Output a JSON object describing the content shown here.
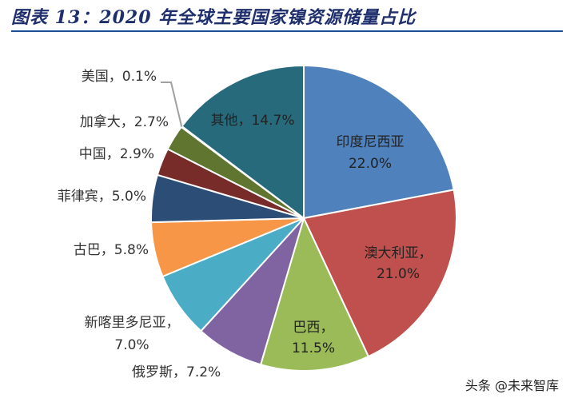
{
  "title": "图表 13：2020 年全球主要国家镍资源储量占比",
  "watermark": "头条 @未来智库",
  "chart_data": {
    "type": "pie",
    "title": "图表 13：2020 年全球主要国家镍资源储量占比",
    "unit": "%",
    "slices": [
      {
        "name": "印度尼西亚",
        "value": 22.0,
        "label_lines": [
          "印度尼西亚",
          "22.0%"
        ],
        "color": "#4f81bd",
        "label_inside": true
      },
      {
        "name": "澳大利亚",
        "value": 21.0,
        "label_lines": [
          "澳大利亚，",
          "21.0%"
        ],
        "color": "#c0504d",
        "label_inside": true
      },
      {
        "name": "巴西",
        "value": 11.5,
        "label_lines": [
          "巴西，",
          "11.5%"
        ],
        "color": "#9bbb59",
        "label_inside": true
      },
      {
        "name": "俄罗斯",
        "value": 7.2,
        "label_lines": [
          "俄罗斯，7.2%"
        ],
        "color": "#8064a2",
        "label_inside": false
      },
      {
        "name": "新喀里多尼亚",
        "value": 7.0,
        "label_lines": [
          "新喀里多尼亚，",
          "7.0%"
        ],
        "color": "#4bacc6",
        "label_inside": false
      },
      {
        "name": "古巴",
        "value": 5.8,
        "label_lines": [
          "古巴，5.8%"
        ],
        "color": "#f79646",
        "label_inside": false
      },
      {
        "name": "菲律宾",
        "value": 5.0,
        "label_lines": [
          "菲律宾，5.0%"
        ],
        "color": "#2c4d75",
        "label_inside": false
      },
      {
        "name": "中国",
        "value": 2.9,
        "label_lines": [
          "中国，2.9%"
        ],
        "color": "#772c2a",
        "label_inside": false
      },
      {
        "name": "加拿大",
        "value": 2.7,
        "label_lines": [
          "加拿大，2.7%"
        ],
        "color": "#5f7530",
        "label_inside": false
      },
      {
        "name": "美国",
        "value": 0.1,
        "label_lines": [
          "美国，0.1%"
        ],
        "color": "#4d3b62",
        "label_inside": false
      },
      {
        "name": "其他",
        "value": 14.7,
        "label_lines": [
          "其他，14.7%"
        ],
        "color": "#276a7c",
        "label_inside": true
      }
    ],
    "start": "12 o'clock",
    "direction": "clockwise",
    "legend": "none"
  }
}
